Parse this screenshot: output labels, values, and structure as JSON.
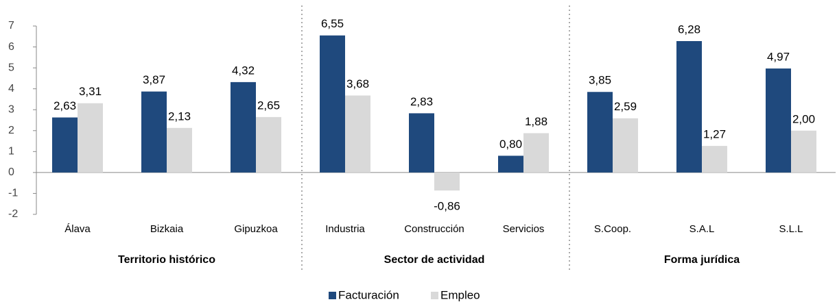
{
  "chart_data": {
    "type": "bar",
    "categories": [
      "Álava",
      "Bizkaia",
      "Gipuzkoa",
      "Industria",
      "Construcción",
      "Servicios",
      "S.Coop.",
      "S.A.L",
      "S.L.L"
    ],
    "group_labels": [
      "Territorio histórico",
      "Sector de actividad",
      "Forma jurídica"
    ],
    "series": [
      {
        "name": "Facturación",
        "color": "#1f497d",
        "values": [
          2.63,
          3.87,
          4.32,
          6.55,
          2.83,
          0.8,
          3.85,
          6.28,
          4.97
        ],
        "value_labels": [
          "2,63",
          "3,87",
          "4,32",
          "6,55",
          "2,83",
          "0,80",
          "3,85",
          "6,28",
          "4,97"
        ]
      },
      {
        "name": "Empleo",
        "color": "#d9d9d9",
        "values": [
          3.31,
          2.13,
          2.65,
          3.68,
          -0.86,
          1.88,
          2.59,
          1.27,
          2.0
        ],
        "value_labels": [
          "3,31",
          "2,13",
          "2,65",
          "3,68",
          "-0,86",
          "1,88",
          "2,59",
          "1,27",
          "2,00"
        ]
      }
    ],
    "ylim": [
      -2,
      7
    ],
    "yticks": [
      -2,
      -1,
      0,
      1,
      2,
      3,
      4,
      5,
      6,
      7
    ],
    "legend": "bottom"
  }
}
